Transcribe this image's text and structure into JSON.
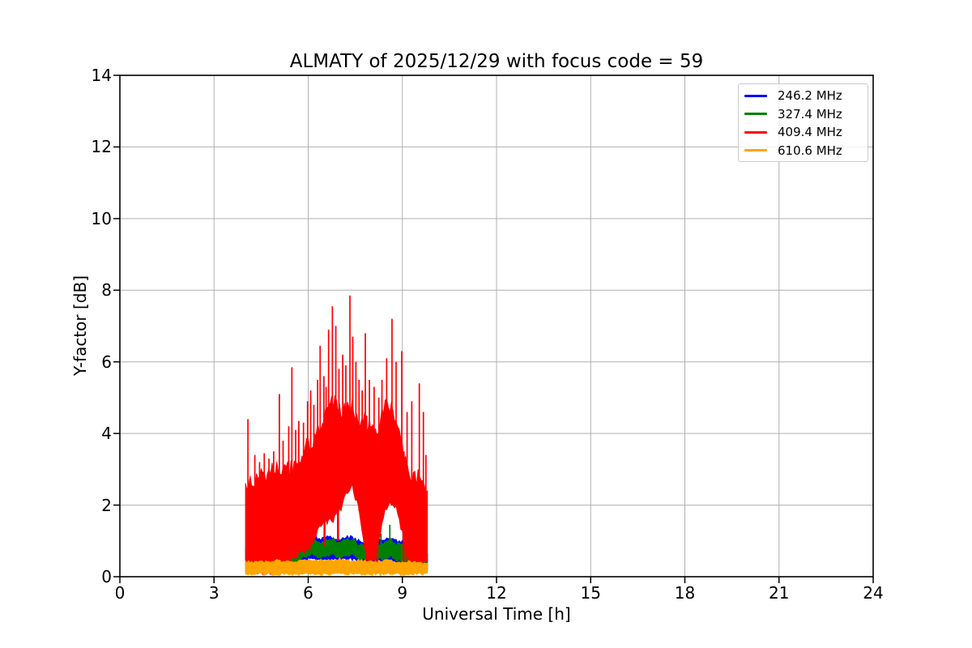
{
  "chart_data": {
    "type": "line",
    "title": "ALMATY of 2025/12/29 with focus code = 59",
    "xlabel": "Universal Time [h]",
    "ylabel": "Y-factor [dB]",
    "xlim": [
      0,
      24
    ],
    "ylim": [
      0,
      14
    ],
    "xticks": [
      0,
      3,
      6,
      9,
      12,
      15,
      18,
      21,
      24
    ],
    "yticks": [
      0,
      2,
      4,
      6,
      8,
      10,
      12,
      14
    ],
    "grid": true,
    "legend_position": "upper right",
    "data_time_range_h": [
      4.0,
      9.8
    ],
    "representation": "dense noisy traces encoded as lower/upper envelopes sampled every 0.2 h, plus isolated spikes [t,value] and vertical columns [t,lo,hi]",
    "t": [
      4.0,
      4.2,
      4.4,
      4.6,
      4.8,
      5.0,
      5.2,
      5.4,
      5.6,
      5.8,
      6.0,
      6.2,
      6.4,
      6.6,
      6.8,
      7.0,
      7.2,
      7.4,
      7.6,
      7.8,
      8.0,
      8.2,
      8.4,
      8.6,
      8.8,
      9.0,
      9.2,
      9.4,
      9.6,
      9.8
    ],
    "series": [
      {
        "name": "246.2 MHz",
        "color": "#0000ff",
        "lo": [
          0.25,
          0.25,
          0.27,
          0.27,
          0.28,
          0.3,
          0.33,
          0.33,
          0.33,
          0.42,
          0.5,
          0.5,
          0.42,
          0.5,
          0.5,
          0.42,
          0.5,
          0.5,
          0.4,
          0.4,
          0.4,
          0.4,
          0.4,
          0.5,
          0.4,
          0.38,
          0.3,
          0.22,
          0.18,
          0.15
        ],
        "hi": [
          0.78,
          0.78,
          0.82,
          0.83,
          0.83,
          0.9,
          0.95,
          1.0,
          0.95,
          1.05,
          1.15,
          1.12,
          1.05,
          1.12,
          1.1,
          1.05,
          1.1,
          1.1,
          1.0,
          0.98,
          0.98,
          1.0,
          1.05,
          1.1,
          1.0,
          1.0,
          0.9,
          0.8,
          0.72,
          0.62
        ],
        "spikes": [],
        "columns": []
      },
      {
        "name": "327.4 MHz",
        "color": "#008000",
        "lo": [
          0.3,
          0.3,
          0.32,
          0.32,
          0.33,
          0.35,
          0.4,
          0.4,
          0.4,
          0.5,
          0.6,
          0.6,
          0.5,
          0.6,
          0.6,
          0.5,
          0.6,
          0.6,
          0.48,
          0.48,
          0.48,
          0.48,
          0.48,
          0.6,
          0.48,
          0.45,
          0.4,
          0.3,
          0.25,
          0.2
        ],
        "hi": [
          0.7,
          0.7,
          0.75,
          0.75,
          0.75,
          0.8,
          0.85,
          0.85,
          0.85,
          0.95,
          1.05,
          1.05,
          0.95,
          1.05,
          1.05,
          0.95,
          1.05,
          1.05,
          0.9,
          0.9,
          0.9,
          0.9,
          0.9,
          1.05,
          0.9,
          0.9,
          0.8,
          0.7,
          0.6,
          0.5
        ],
        "spikes": [
          [
            8.32,
            1.2
          ],
          [
            8.6,
            1.45
          ]
        ],
        "columns": []
      },
      {
        "name": "409.4 MHz",
        "color": "#ff0000",
        "lo": [
          0.15,
          0.14,
          0.15,
          0.14,
          0.15,
          0.15,
          0.15,
          0.45,
          0.5,
          0.65,
          0.7,
          1.1,
          1.45,
          1.55,
          1.6,
          1.8,
          2.3,
          2.55,
          1.9,
          0.8,
          0.35,
          0.8,
          1.7,
          2.05,
          2.0,
          1.2,
          0.35,
          0.3,
          0.3,
          0.4
        ],
        "hi": [
          2.55,
          2.6,
          2.75,
          2.8,
          2.95,
          3.1,
          3.05,
          3.0,
          3.15,
          3.4,
          3.7,
          3.9,
          4.3,
          4.55,
          4.95,
          4.6,
          4.7,
          4.85,
          4.3,
          4.4,
          4.2,
          4.0,
          4.7,
          4.8,
          4.4,
          3.6,
          2.8,
          2.75,
          2.8,
          2.4
        ],
        "spikes": [
          [
            4.08,
            4.4
          ],
          [
            4.3,
            3.4
          ],
          [
            4.45,
            3.2
          ],
          [
            4.6,
            3.45
          ],
          [
            4.75,
            3.3
          ],
          [
            4.9,
            3.5
          ],
          [
            5.08,
            5.1
          ],
          [
            5.2,
            3.8
          ],
          [
            5.38,
            4.2
          ],
          [
            5.48,
            5.85
          ],
          [
            5.6,
            4.1
          ],
          [
            5.7,
            4.35
          ],
          [
            5.85,
            4.3
          ],
          [
            5.98,
            4.9
          ],
          [
            6.08,
            5.2
          ],
          [
            6.18,
            4.8
          ],
          [
            6.3,
            5.5
          ],
          [
            6.38,
            6.45
          ],
          [
            6.5,
            5.6
          ],
          [
            6.57,
            5.3
          ],
          [
            6.65,
            6.9
          ],
          [
            6.77,
            7.55
          ],
          [
            6.88,
            7.0
          ],
          [
            6.98,
            5.8
          ],
          [
            7.1,
            6.2
          ],
          [
            7.2,
            5.9
          ],
          [
            7.33,
            7.85
          ],
          [
            7.42,
            6.7
          ],
          [
            7.52,
            6.0
          ],
          [
            7.62,
            5.5
          ],
          [
            7.72,
            5.2
          ],
          [
            7.82,
            6.8
          ],
          [
            7.95,
            5.5
          ],
          [
            8.1,
            5.3
          ],
          [
            8.25,
            5.0
          ],
          [
            8.35,
            5.5
          ],
          [
            8.5,
            6.1
          ],
          [
            8.67,
            7.2
          ],
          [
            8.8,
            6.0
          ],
          [
            8.98,
            6.3
          ],
          [
            9.15,
            4.6
          ],
          [
            9.3,
            4.9
          ],
          [
            9.54,
            5.4
          ],
          [
            9.67,
            4.6
          ],
          [
            9.75,
            3.4
          ]
        ],
        "columns": [
          [
            6.52,
            0.85,
            4.0
          ],
          [
            6.95,
            1.0,
            4.5
          ],
          [
            7.85,
            0.15,
            4.5
          ],
          [
            7.93,
            0.2,
            3.8
          ],
          [
            8.02,
            0.2,
            4.2
          ],
          [
            8.12,
            0.3,
            3.9
          ],
          [
            8.2,
            0.25,
            4.0
          ],
          [
            9.04,
            0.2,
            3.5
          ]
        ]
      },
      {
        "name": "610.6 MHz",
        "color": "#ffa500",
        "lo": [
          0.07,
          0.06,
          0.08,
          0.07,
          0.08,
          0.06,
          0.07,
          0.08,
          0.06,
          0.08,
          0.07,
          0.06,
          0.08,
          0.07,
          0.08,
          0.06,
          0.08,
          0.07,
          0.06,
          0.08,
          0.07,
          0.08,
          0.06,
          0.08,
          0.07,
          0.06,
          0.08,
          0.07,
          0.08,
          0.07
        ],
        "hi": [
          0.42,
          0.4,
          0.43,
          0.42,
          0.43,
          0.45,
          0.42,
          0.44,
          0.43,
          0.45,
          0.46,
          0.45,
          0.45,
          0.46,
          0.45,
          0.5,
          0.45,
          0.45,
          0.46,
          0.45,
          0.45,
          0.42,
          0.45,
          0.45,
          0.42,
          0.42,
          0.42,
          0.42,
          0.38,
          0.38
        ],
        "spikes": [],
        "columns": []
      }
    ]
  },
  "colors": {
    "grid": "#b0b0b0",
    "axis": "#000000",
    "legend_border": "#cccccc",
    "background": "#ffffff"
  }
}
